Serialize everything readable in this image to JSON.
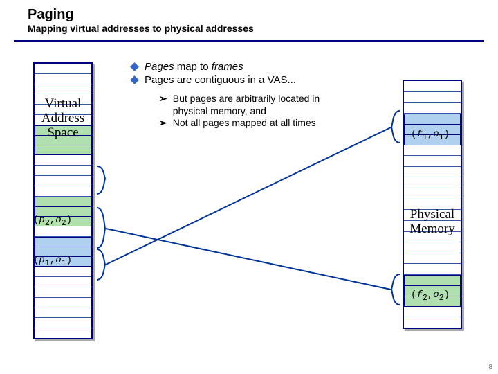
{
  "header": {
    "title": "Paging",
    "subtitle": "Mapping virtual addresses to physical addresses"
  },
  "bullets": [
    "Pages map to frames",
    "Pages are contiguous in a VAS..."
  ],
  "bullet_emph": {
    "0": {
      "word1": "Pages",
      "word2": "frames",
      "mid": " map to "
    },
    "1": {
      "text": "Pages are contiguous in a VAS..."
    }
  },
  "subbullets": [
    "But pages are arbitrarily located in physical memory, and",
    "Not all pages mapped at all times"
  ],
  "labels": {
    "vas": "Virtual Address Space",
    "phys": "Physical Memory"
  },
  "tuples": {
    "p2": "(p2,o2)",
    "p1": "(p1,o1)",
    "f1": "(f1,o1)",
    "f2": "(f2,o2)"
  },
  "colors": {
    "border": "#000080",
    "grid": "#3355aa",
    "green": "#b0e0b0",
    "blue": "#b0d0f0",
    "brace": "#003399",
    "line": "#003399"
  },
  "slide_number": "8",
  "vas_cells": {
    "top_plain": 6,
    "block1_rows": 3,
    "mid1_plain": 4,
    "block2_rows": 3,
    "mid2_plain": 1,
    "block3_rows": 3,
    "bottom_plain": 7
  },
  "phys_cells": {
    "top_plain": 3,
    "block1_rows": 3,
    "mid_plain": 12,
    "block2_rows": 3,
    "bottom_plain": 2
  }
}
